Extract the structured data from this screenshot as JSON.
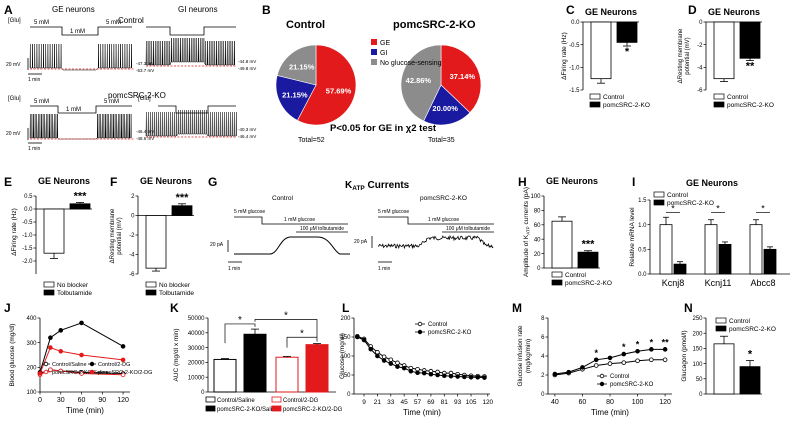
{
  "panels": {
    "A": {
      "letter": "A",
      "title_ge": "GE neurons",
      "title_gi": "GI neurons",
      "control": "Control",
      "ko": "pomcSRC-2-KO",
      "glu": "[Glu]",
      "c5": "5 mM",
      "c1": "1 mM",
      "scale_v": "20 mV",
      "scale_t": "1 min",
      "ge_ctrl_v": [
        "-47.3 mV",
        "-53.7 mV"
      ],
      "gi_ctrl_v": [
        "-44.8 mV",
        "-49.8 mV"
      ],
      "ge_ko_v": [
        "-46.4 mV",
        "-48.6 mV"
      ],
      "gi_ko_v": [
        "-40.3 mV",
        "-46.4 mV"
      ]
    },
    "B": {
      "letter": "B",
      "legend": [
        "GE",
        "GI",
        "No glucose-sensing"
      ],
      "colors": [
        "#e31a1c",
        "#1a1aa0",
        "#8c8c8c"
      ],
      "control_title": "Control",
      "ko_title": "pomcSRC-2-KO",
      "control_total": "Total=52",
      "ko_total": "Total=35",
      "stat": "P<0.05 for GE in χ2 test"
    },
    "C": {
      "letter": "C",
      "title": "GE Neurons",
      "ylabel": "ΔFiring rate (Hz)",
      "sig": "*"
    },
    "D": {
      "letter": "D",
      "title": "GE Neurons",
      "ylabel": "ΔResting membrane potential (mV)",
      "sig": "**"
    },
    "E": {
      "letter": "E",
      "title": "GE Neurons",
      "ylabel": "ΔFiring rate (Hz)",
      "sig": "***"
    },
    "F": {
      "letter": "F",
      "title": "GE Neurons",
      "ylabel": "ΔResting membrane potential (mV)",
      "sig": "***"
    },
    "G": {
      "letter": "G",
      "title": "K",
      "title_sub": "ATP",
      "title_rest": " Currents",
      "control": "Control",
      "ko": "pomcSRC-2-KO",
      "g5": "5 mM glucose",
      "g1": "1 mM glucose",
      "tolb": "100 μM tolbutamide",
      "scale_i": "20 pA",
      "scale_t": "1 min"
    },
    "H": {
      "letter": "H",
      "title": "GE Neurons",
      "ylabel": "Amplitude of K",
      "ylabel_sub": "ATP",
      "ylabel_rest": " currents (pA)",
      "sig": "***"
    },
    "I": {
      "letter": "I",
      "title": "GE Neurons",
      "ylabel": "Relative mRNA level",
      "sig": "*"
    },
    "J": {
      "letter": "J"
    },
    "K": {
      "letter": "K",
      "sig": "*"
    },
    "L": {
      "letter": "L"
    },
    "M": {
      "letter": "M",
      "sig1": "*",
      "sig2": "**"
    },
    "N": {
      "letter": "N",
      "sig": "*"
    }
  },
  "legends": {
    "ctrl_ko": [
      "Control",
      "pomcSRC-2-KO"
    ],
    "blocker": [
      "No blocker",
      "Tolbutamide"
    ],
    "jk": [
      "Control/Saline",
      "pomcSRC-2-KO/Saline",
      "Control/2-DG",
      "pomcSRC-2-KO/2-DG"
    ]
  },
  "chart_data": [
    {
      "panel": "B-control",
      "type": "pie",
      "title": "Control",
      "categories": [
        "GE",
        "GI",
        "No glucose-sensing"
      ],
      "values": [
        57.69,
        21.15,
        21.15
      ],
      "labels": [
        "57.69%",
        "21.15%",
        "21.15%"
      ]
    },
    {
      "panel": "B-ko",
      "type": "pie",
      "title": "pomcSRC-2-KO",
      "categories": [
        "GE",
        "GI",
        "No glucose-sensing"
      ],
      "values": [
        37.14,
        20.0,
        42.86
      ],
      "labels": [
        "37.14%",
        "20.00%",
        "42.86%"
      ]
    },
    {
      "panel": "C",
      "type": "bar",
      "title": "GE Neurons",
      "ylabel": "ΔFiring rate (Hz)",
      "categories": [
        "Control",
        "pomcSRC-2-KO"
      ],
      "values": [
        -1.25,
        -0.45
      ],
      "errors": [
        0.1,
        0.08
      ],
      "ylim": [
        -1.5,
        0.0
      ],
      "yticks": [
        -1.5,
        -1.0,
        -0.5,
        0.0
      ],
      "ytick_labels": [
        "-1.5",
        "-1.0",
        "-0.5",
        "0.0"
      ]
    },
    {
      "panel": "D",
      "type": "bar",
      "title": "GE Neurons",
      "ylabel": "ΔResting membrane potential (mV)",
      "categories": [
        "Control",
        "pomcSRC-2-KO"
      ],
      "values": [
        -5.0,
        -3.2
      ],
      "errors": [
        0.25,
        0.2
      ],
      "ylim": [
        -6,
        0
      ],
      "yticks": [
        -6,
        -4,
        -2,
        0
      ],
      "ytick_labels": [
        "-6",
        "-4",
        "-2",
        "0"
      ]
    },
    {
      "panel": "E",
      "type": "bar",
      "title": "GE Neurons",
      "ylabel": "ΔFiring rate (Hz)",
      "categories": [
        "No blocker",
        "Tolbutamide"
      ],
      "values": [
        -1.7,
        0.2
      ],
      "errors": [
        0.2,
        0.05
      ],
      "ylim": [
        -2.5,
        0.5
      ],
      "yticks": [
        -2.0,
        -1.5,
        -1.0,
        -0.5,
        0.0,
        0.5
      ],
      "ytick_labels": [
        "-2.0",
        "-1.5",
        "-1.0",
        "-0.5",
        "0.0",
        "0.5"
      ]
    },
    {
      "panel": "F",
      "type": "bar",
      "title": "GE Neurons",
      "ylabel": "ΔResting membrane potential (mV)",
      "categories": [
        "No blocker",
        "Tolbutamide"
      ],
      "values": [
        -5.4,
        1.0
      ],
      "errors": [
        0.3,
        0.2
      ],
      "ylim": [
        -6,
        2
      ],
      "yticks": [
        -6,
        -4,
        -2,
        0,
        2
      ],
      "ytick_labels": [
        "-6",
        "-4",
        "-2",
        "0",
        "2"
      ]
    },
    {
      "panel": "H",
      "type": "bar",
      "title": "GE Neurons",
      "ylabel": "Amplitude of KATP currents (pA)",
      "categories": [
        "Control",
        "pomcSRC-2-KO"
      ],
      "values": [
        65,
        22
      ],
      "errors": [
        6,
        2
      ],
      "ylim": [
        0,
        100
      ],
      "yticks": [
        0,
        20,
        40,
        60,
        80,
        100
      ],
      "ytick_labels": [
        "0",
        "20",
        "40",
        "60",
        "80",
        "100"
      ]
    },
    {
      "panel": "I",
      "type": "bar",
      "title": "GE Neurons",
      "ylabel": "Relative mRNA level",
      "categories": [
        "Kcnj8",
        "Kcnj11",
        "Abcc8"
      ],
      "series": [
        {
          "name": "Control",
          "values": [
            1.0,
            1.0,
            1.0
          ],
          "errors": [
            0.15,
            0.1,
            0.1
          ]
        },
        {
          "name": "pomcSRC-2-KO",
          "values": [
            0.2,
            0.6,
            0.5
          ],
          "errors": [
            0.05,
            0.05,
            0.05
          ]
        }
      ],
      "ylim": [
        0,
        1.5
      ],
      "yticks": [
        0,
        0.5,
        1.0,
        1.5
      ],
      "ytick_labels": [
        "0.0",
        "0.5",
        "1.0",
        "1.5"
      ]
    },
    {
      "panel": "J",
      "type": "line",
      "xlabel": "Time (min)",
      "ylabel": "Blood glucose (mg/dl)",
      "x": [
        0,
        15,
        30,
        60,
        120
      ],
      "series": [
        {
          "name": "Control/Saline",
          "values": [
            175,
            190,
            185,
            180,
            175
          ]
        },
        {
          "name": "pomcSRC-2-KO/Saline",
          "values": [
            170,
            190,
            185,
            175,
            170
          ]
        },
        {
          "name": "Control/2-DG",
          "values": [
            180,
            320,
            350,
            380,
            285
          ]
        },
        {
          "name": "pomcSRC-2-KO/2-DG",
          "values": [
            175,
            280,
            265,
            250,
            230
          ]
        }
      ],
      "xlim": [
        0,
        130
      ],
      "ylim": [
        100,
        400
      ],
      "xticks": [
        0,
        30,
        60,
        90,
        120
      ],
      "yticks": [
        100,
        200,
        300,
        400
      ],
      "xtick_labels": [
        "0",
        "30",
        "60",
        "90",
        "120"
      ],
      "ytick_labels": [
        "100",
        "200",
        "300",
        "400"
      ]
    },
    {
      "panel": "K",
      "type": "bar",
      "ylabel": "AUC (mg/dl x min)",
      "categories": [
        "Control/Saline",
        "Control/2-DG",
        "pomcSRC-2-KO/Saline",
        "pomcSRC-2-KO/2-DG"
      ],
      "values": [
        22000,
        39000,
        23500,
        32000
      ],
      "errors": [
        600,
        3500,
        500,
        700
      ],
      "ylim": [
        0,
        50000
      ],
      "yticks": [
        0,
        10000,
        20000,
        30000,
        40000,
        50000
      ],
      "ytick_labels": [
        "0",
        "10000",
        "20000",
        "30000",
        "40000",
        "50000"
      ]
    },
    {
      "panel": "L",
      "type": "line",
      "xlabel": "Time (min)",
      "ylabel": "Glucose (mg/dl)",
      "x": [
        3,
        9,
        15,
        21,
        27,
        33,
        39,
        45,
        51,
        57,
        63,
        69,
        75,
        81,
        87,
        93,
        99,
        105,
        111,
        117
      ],
      "series": [
        {
          "name": "Control",
          "values": [
            152,
            145,
            125,
            110,
            98,
            90,
            82,
            75,
            68,
            65,
            62,
            60,
            58,
            55,
            55,
            52,
            50,
            48,
            47,
            46
          ]
        },
        {
          "name": "pomcSRC-2-KO",
          "values": [
            150,
            142,
            118,
            100,
            88,
            80,
            72,
            68,
            60,
            56,
            55,
            52,
            50,
            48,
            47,
            46,
            45,
            44,
            44,
            43
          ]
        }
      ],
      "xlim": [
        0,
        122
      ],
      "ylim": [
        0,
        200
      ],
      "xticks": [
        9,
        21,
        33,
        45,
        57,
        69,
        81,
        93,
        105,
        120
      ],
      "yticks": [
        0,
        50,
        100,
        150,
        200
      ],
      "xtick_labels": [
        "9",
        "21",
        "33",
        "45",
        "57",
        "69",
        "81",
        "93",
        "105",
        "120"
      ],
      "ytick_labels": [
        "0",
        "50",
        "100",
        "150",
        "200"
      ]
    },
    {
      "panel": "M",
      "type": "line",
      "xlabel": "Time (min)",
      "ylabel": "Glucose infusion rate (mg/kg/min)",
      "x": [
        40,
        50,
        60,
        70,
        80,
        90,
        100,
        110,
        120
      ],
      "series": [
        {
          "name": "Control",
          "values": [
            2.0,
            2.2,
            2.6,
            3.0,
            3.2,
            3.3,
            3.5,
            3.6,
            3.6
          ]
        },
        {
          "name": "pomcSRC-2-KO",
          "values": [
            2.1,
            2.3,
            2.8,
            3.6,
            3.8,
            4.2,
            4.5,
            4.7,
            4.7
          ]
        }
      ],
      "xlim": [
        35,
        125
      ],
      "ylim": [
        0,
        8
      ],
      "xticks": [
        40,
        60,
        80,
        100,
        120
      ],
      "yticks": [
        0,
        2,
        4,
        6,
        8
      ],
      "xtick_labels": [
        "40",
        "60",
        "80",
        "100",
        "120"
      ],
      "ytick_labels": [
        "0",
        "2",
        "4",
        "6",
        "8"
      ]
    },
    {
      "panel": "N",
      "type": "bar",
      "ylabel": "Glucagon (pmol/l)",
      "categories": [
        "Control",
        "pomcSRC-2-KO"
      ],
      "values": [
        165,
        90
      ],
      "errors": [
        25,
        20
      ],
      "ylim": [
        0,
        250
      ],
      "yticks": [
        0,
        50,
        100,
        150,
        200,
        250
      ],
      "ytick_labels": [
        "0",
        "50",
        "100",
        "150",
        "200",
        "250"
      ]
    }
  ]
}
